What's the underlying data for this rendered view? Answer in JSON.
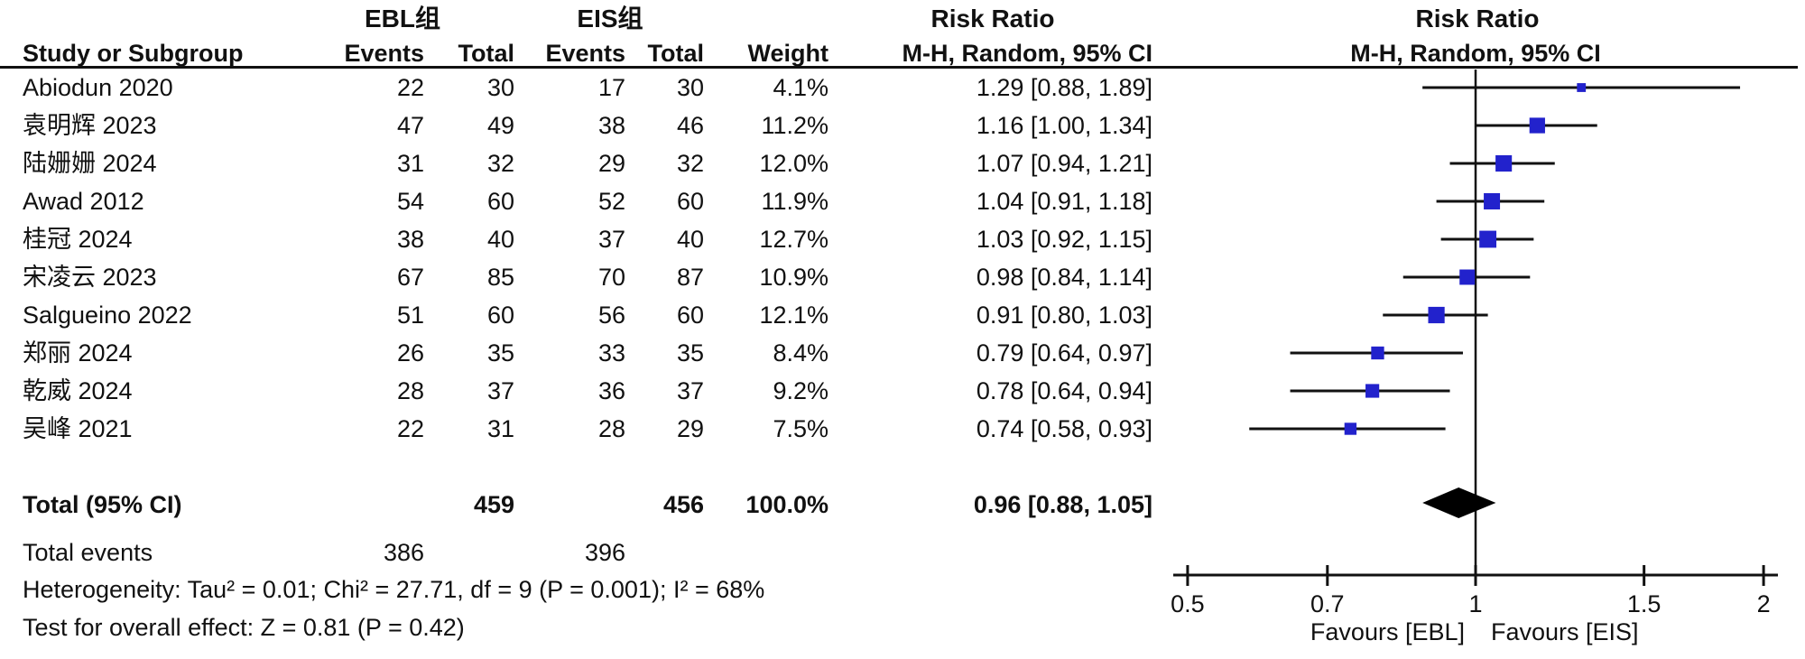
{
  "header": {
    "group1": "EBL组",
    "group2": "EIS组",
    "risk_ratio_left": "Risk Ratio",
    "risk_ratio_right": "Risk Ratio",
    "columns": {
      "study": "Study or Subgroup",
      "events1": "Events",
      "total1": "Total",
      "events2": "Events",
      "total2": "Total",
      "weight": "Weight",
      "method_ci": "M-H, Random, 95% CI",
      "method_ci_plot": "M-H, Random, 95% CI"
    }
  },
  "studies": [
    {
      "name": "Abiodun 2020",
      "events1": "22",
      "total1": "30",
      "events2": "17",
      "total2": "30",
      "weight": "4.1%",
      "ci_text": "1.29 [0.88, 1.89]"
    },
    {
      "name": "袁明辉 2023",
      "events1": "47",
      "total1": "49",
      "events2": "38",
      "total2": "46",
      "weight": "11.2%",
      "ci_text": "1.16 [1.00, 1.34]"
    },
    {
      "name": "陆姗姗 2024",
      "events1": "31",
      "total1": "32",
      "events2": "29",
      "total2": "32",
      "weight": "12.0%",
      "ci_text": "1.07 [0.94, 1.21]"
    },
    {
      "name": "Awad 2012",
      "events1": "54",
      "total1": "60",
      "events2": "52",
      "total2": "60",
      "weight": "11.9%",
      "ci_text": "1.04 [0.91, 1.18]"
    },
    {
      "name": "桂冠 2024",
      "events1": "38",
      "total1": "40",
      "events2": "37",
      "total2": "40",
      "weight": "12.7%",
      "ci_text": "1.03 [0.92, 1.15]"
    },
    {
      "name": "宋凌云 2023",
      "events1": "67",
      "total1": "85",
      "events2": "70",
      "total2": "87",
      "weight": "10.9%",
      "ci_text": "0.98 [0.84, 1.14]"
    },
    {
      "name": "Salgueino 2022",
      "events1": "51",
      "total1": "60",
      "events2": "56",
      "total2": "60",
      "weight": "12.1%",
      "ci_text": "0.91 [0.80, 1.03]"
    },
    {
      "name": "郑丽 2024",
      "events1": "26",
      "total1": "35",
      "events2": "33",
      "total2": "35",
      "weight": "8.4%",
      "ci_text": "0.79 [0.64, 0.97]"
    },
    {
      "name": "乾威 2024",
      "events1": "28",
      "total1": "37",
      "events2": "36",
      "total2": "37",
      "weight": "9.2%",
      "ci_text": "0.78 [0.64, 0.94]"
    },
    {
      "name": "吴峰 2021",
      "events1": "22",
      "total1": "31",
      "events2": "28",
      "total2": "29",
      "weight": "7.5%",
      "ci_text": "0.74 [0.58, 0.93]"
    }
  ],
  "total": {
    "label": "Total (95% CI)",
    "total1": "459",
    "total2": "456",
    "weight": "100.0%",
    "ci_text": "0.96 [0.88, 1.05]"
  },
  "total_events": {
    "label": "Total events",
    "value1": "386",
    "value2": "396"
  },
  "heterogeneity": "Heterogeneity: Tau² = 0.01; Chi² = 27.71, df = 9 (P = 0.001); I² = 68%",
  "overall_effect": "Test for overall effect: Z = 0.81 (P = 0.42)",
  "chart_data": {
    "type": "forest",
    "scale": "log",
    "effect_measure": "Risk Ratio (M-H, Random, 95% CI)",
    "axis_range": [
      0.5,
      2
    ],
    "axis_ticks": [
      "0.5",
      "0.7",
      "1",
      "1.5",
      "2"
    ],
    "favours_left": "Favours [EBL]",
    "favours_right": "Favours [EIS]",
    "marker_color": "#2222CC",
    "line_color": "#111111",
    "diamond_color": "#000000",
    "points": [
      {
        "study": "Abiodun 2020",
        "rr": 1.29,
        "low": 0.88,
        "high": 1.89,
        "weight_pct": 4.1
      },
      {
        "study": "袁明辉 2023",
        "rr": 1.16,
        "low": 1.0,
        "high": 1.34,
        "weight_pct": 11.2
      },
      {
        "study": "陆姗姗 2024",
        "rr": 1.07,
        "low": 0.94,
        "high": 1.21,
        "weight_pct": 12.0
      },
      {
        "study": "Awad 2012",
        "rr": 1.04,
        "low": 0.91,
        "high": 1.18,
        "weight_pct": 11.9
      },
      {
        "study": "桂冠 2024",
        "rr": 1.03,
        "low": 0.92,
        "high": 1.15,
        "weight_pct": 12.7
      },
      {
        "study": "宋凌云 2023",
        "rr": 0.98,
        "low": 0.84,
        "high": 1.14,
        "weight_pct": 10.9
      },
      {
        "study": "Salgueino 2022",
        "rr": 0.91,
        "low": 0.8,
        "high": 1.03,
        "weight_pct": 12.1
      },
      {
        "study": "郑丽 2024",
        "rr": 0.79,
        "low": 0.64,
        "high": 0.97,
        "weight_pct": 8.4
      },
      {
        "study": "乾威 2024",
        "rr": 0.78,
        "low": 0.64,
        "high": 0.94,
        "weight_pct": 9.2
      },
      {
        "study": "吴峰 2021",
        "rr": 0.74,
        "low": 0.58,
        "high": 0.93,
        "weight_pct": 7.5
      }
    ],
    "pooled": {
      "rr": 0.96,
      "low": 0.88,
      "high": 1.05
    }
  }
}
